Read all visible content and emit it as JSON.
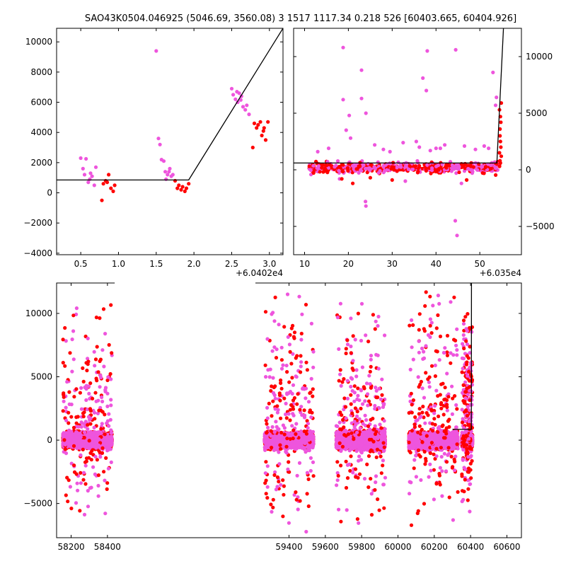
{
  "title": "SAO43K0504.046925 (5046.69, 3560.08)   3 1517 1117.34 0.218 526 [60403.665, 60404.926]",
  "colors": {
    "primary": "#ff0000",
    "secondary": "#ee55dd",
    "model": "#000000"
  },
  "chart_data": [
    {
      "id": "top-left",
      "type": "scatter",
      "xlim": [
        0.18,
        3.18
      ],
      "ylim": [
        -4100,
        10900
      ],
      "x_offset_label": "+6.0402e4",
      "xticks": [
        0.5,
        1.0,
        1.5,
        2.0,
        2.5,
        3.0
      ],
      "xtick_labels": [
        "0.5",
        "1.0",
        "1.5",
        "2.0",
        "2.5",
        "3.0"
      ],
      "yticks": [
        -4000,
        -2000,
        0,
        2000,
        4000,
        6000,
        8000,
        10000
      ],
      "ytick_labels": [
        "−4000",
        "−2000",
        "0",
        "2000",
        "4000",
        "6000",
        "8000",
        "10000"
      ],
      "yaxis_side": "left",
      "model_line": [
        [
          0.18,
          850
        ],
        [
          1.93,
          850
        ],
        [
          3.18,
          10900
        ]
      ],
      "series": [
        {
          "color": "secondary",
          "points": [
            [
              0.5,
              2300
            ],
            [
              0.53,
              1600
            ],
            [
              0.57,
              2250
            ],
            [
              0.6,
              700
            ],
            [
              0.62,
              900
            ],
            [
              0.65,
              1100
            ],
            [
              0.68,
              500
            ],
            [
              0.7,
              1700
            ],
            [
              0.55,
              1200
            ],
            [
              0.63,
              1300
            ]
          ]
        },
        {
          "color": "primary",
          "points": [
            [
              0.78,
              -500
            ],
            [
              0.8,
              600
            ],
            [
              0.83,
              800
            ],
            [
              0.85,
              700
            ],
            [
              0.87,
              1200
            ],
            [
              0.9,
              300
            ],
            [
              0.93,
              100
            ],
            [
              0.95,
              500
            ]
          ]
        },
        {
          "color": "secondary",
          "points": [
            [
              1.5,
              9400
            ],
            [
              1.53,
              3600
            ],
            [
              1.55,
              3200
            ],
            [
              1.57,
              2200
            ],
            [
              1.6,
              2100
            ],
            [
              1.62,
              1400
            ],
            [
              1.63,
              900
            ],
            [
              1.65,
              1200
            ],
            [
              1.67,
              1400
            ],
            [
              1.7,
              1100
            ],
            [
              1.72,
              1200
            ],
            [
              1.68,
              1600
            ]
          ]
        },
        {
          "color": "primary",
          "points": [
            [
              1.75,
              800
            ],
            [
              1.78,
              300
            ],
            [
              1.8,
              500
            ],
            [
              1.83,
              200
            ],
            [
              1.85,
              400
            ],
            [
              1.88,
              100
            ],
            [
              1.9,
              300
            ],
            [
              1.93,
              600
            ]
          ]
        },
        {
          "color": "secondary",
          "points": [
            [
              2.5,
              6900
            ],
            [
              2.52,
              6500
            ],
            [
              2.55,
              6200
            ],
            [
              2.58,
              6000
            ],
            [
              2.6,
              6600
            ],
            [
              2.63,
              6400
            ],
            [
              2.65,
              5700
            ],
            [
              2.68,
              5500
            ],
            [
              2.7,
              5800
            ],
            [
              2.73,
              5200
            ],
            [
              2.57,
              6700
            ],
            [
              2.62,
              6150
            ]
          ]
        },
        {
          "color": "primary",
          "points": [
            [
              2.78,
              3000
            ],
            [
              2.8,
              4600
            ],
            [
              2.83,
              4300
            ],
            [
              2.85,
              4500
            ],
            [
              2.88,
              4700
            ],
            [
              2.9,
              3800
            ],
            [
              2.93,
              4300
            ],
            [
              2.95,
              3500
            ],
            [
              2.98,
              4700
            ],
            [
              2.92,
              4100
            ]
          ]
        }
      ]
    },
    {
      "id": "top-right",
      "type": "scatter",
      "xlim": [
        7.5,
        59.5
      ],
      "ylim": [
        -7500,
        12500
      ],
      "x_offset_label": "+6.035e4",
      "xticks": [
        10,
        20,
        30,
        40,
        50
      ],
      "xtick_labels": [
        "10",
        "20",
        "30",
        "40",
        "50"
      ],
      "yticks": [
        -5000,
        0,
        5000,
        10000
      ],
      "ytick_labels": [
        "−5000",
        "0",
        "5000",
        "10000"
      ],
      "yaxis_side": "right",
      "model_line": [
        [
          7.5,
          600
        ],
        [
          53.9,
          600
        ],
        [
          55.4,
          12500
        ]
      ],
      "dense_band": {
        "x_range": [
          11,
          54.5
        ],
        "y_center": 200,
        "y_spread": 500
      },
      "series": [
        {
          "color": "secondary",
          "points": [
            [
              18.8,
              10800
            ],
            [
              23,
              8800
            ],
            [
              18.8,
              6200
            ],
            [
              23,
              6300
            ],
            [
              20.2,
              4800
            ],
            [
              19.5,
              3500
            ],
            [
              24,
              5000
            ],
            [
              20.5,
              2800
            ],
            [
              37,
              8100
            ],
            [
              37.8,
              7000
            ],
            [
              38,
              10500
            ],
            [
              44.5,
              10600
            ],
            [
              53,
              8600
            ],
            [
              53.8,
              6400
            ],
            [
              53.6,
              5700
            ],
            [
              24,
              -3200
            ],
            [
              23.9,
              -2800
            ],
            [
              44.8,
              -5800
            ],
            [
              44.4,
              -4500
            ],
            [
              26,
              2200
            ],
            [
              28,
              1800
            ],
            [
              32.5,
              2400
            ],
            [
              35.5,
              2500
            ],
            [
              36.2,
              2000
            ],
            [
              40,
              1900
            ],
            [
              41,
              1900
            ],
            [
              42,
              2200
            ],
            [
              46.5,
              2100
            ],
            [
              49,
              1800
            ],
            [
              51,
              2100
            ],
            [
              52,
              1900
            ],
            [
              13,
              1600
            ],
            [
              15.5,
              1900
            ],
            [
              29.5,
              1600
            ],
            [
              38.7,
              1700
            ],
            [
              45.8,
              -1200
            ],
            [
              33,
              -1000
            ],
            [
              18,
              -800
            ]
          ]
        },
        {
          "color": "primary",
          "points": [
            [
              54.6,
              3000
            ],
            [
              54.7,
              2500
            ],
            [
              54.8,
              4200
            ],
            [
              54.5,
              5300
            ],
            [
              54.9,
              5900
            ],
            [
              54.7,
              4700
            ],
            [
              54.6,
              3600
            ],
            [
              54.8,
              2000
            ],
            [
              54.5,
              1500
            ],
            [
              54.9,
              1200
            ],
            [
              54.6,
              800
            ],
            [
              54.7,
              600
            ],
            [
              54.5,
              300
            ],
            [
              18.5,
              -800
            ],
            [
              25,
              -700
            ],
            [
              21,
              -1200
            ],
            [
              30,
              -900
            ],
            [
              47,
              -900
            ]
          ]
        }
      ]
    },
    {
      "id": "bottom",
      "type": "scatter",
      "xlim": [
        58120,
        60680
      ],
      "ylim": [
        -7700,
        12400
      ],
      "xticks": [
        58200,
        58400,
        59400,
        59600,
        59800,
        60000,
        60200,
        60400,
        60600
      ],
      "xtick_labels": [
        "58200",
        "58400",
        "59400",
        "59600",
        "59800",
        "60000",
        "60200",
        "60400",
        "60600"
      ],
      "yticks": [
        -5000,
        0,
        5000,
        10000
      ],
      "ytick_labels": [
        "−5000",
        "0",
        "5000",
        "10000"
      ],
      "yaxis_side": "left",
      "model_line": [
        [
          60300,
          850
        ],
        [
          60404,
          850
        ],
        [
          60405,
          12400
        ]
      ],
      "clusters": [
        {
          "x_range": [
            58155,
            58425
          ],
          "core_sigma": 700,
          "outlier_max": 12100,
          "outlier_min": -6500
        },
        {
          "x_range": [
            59265,
            59535
          ],
          "core_sigma": 700,
          "outlier_max": 12400,
          "outlier_min": -7700
        },
        {
          "x_range": [
            59660,
            59930
          ],
          "core_sigma": 800,
          "outlier_max": 12400,
          "outlier_min": -7700
        },
        {
          "x_range": [
            60060,
            60330
          ],
          "core_sigma": 750,
          "outlier_max": 12400,
          "outlier_min": -7000
        },
        {
          "x_range": [
            60352,
            60410
          ],
          "core_sigma": 500,
          "outlier_max": 10800,
          "outlier_min": -5700
        }
      ]
    }
  ]
}
